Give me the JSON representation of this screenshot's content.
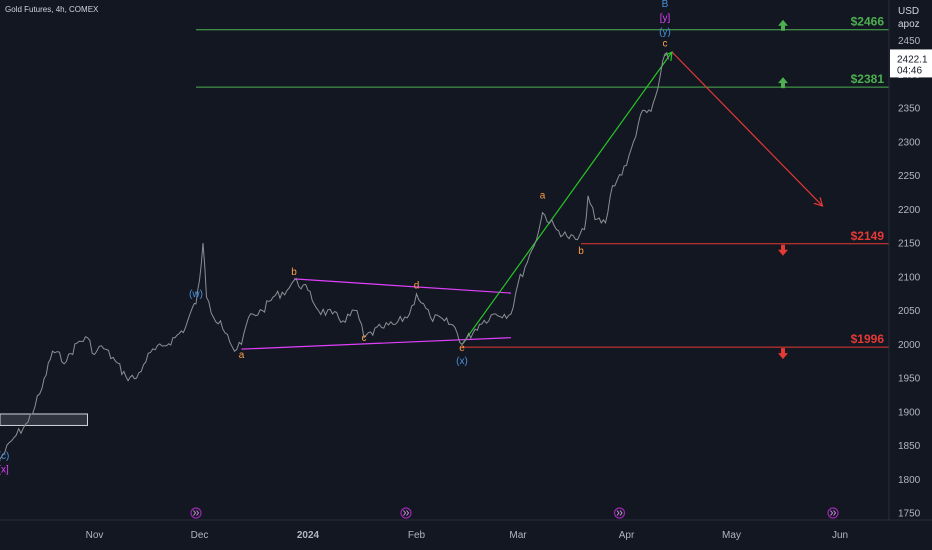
{
  "header": {
    "symbol_info": "Gold Futures, 4h, COMEX"
  },
  "price_axis": {
    "currency": "USD",
    "user": "apoz",
    "current_price": "2422.1",
    "countdown": "04:46"
  },
  "colors": {
    "background": "#131722",
    "grid": "#1f2430",
    "price": "#8d8f96",
    "level_green": "#4caf50",
    "level_red": "#e53935",
    "triangle": "#e040fb",
    "impulse_green": "#26c826",
    "projection_red": "#e53935",
    "wave_blue": "#4a90d9",
    "wave_orange": "#ff9f4a",
    "wave_magenta": "#e040fb",
    "current_price_box": "#ffffff"
  },
  "levels": [
    {
      "price": 2466,
      "label": "$2466",
      "direction": "up",
      "color": "#4caf50"
    },
    {
      "price": 2381,
      "label": "$2381",
      "direction": "up",
      "color": "#4caf50"
    },
    {
      "price": 2149,
      "label": "$2149",
      "direction": "down",
      "color": "#e53935"
    },
    {
      "price": 1996,
      "label": "$1996",
      "direction": "down",
      "color": "#e53935"
    }
  ],
  "wave_labels": [
    {
      "text": "(c)",
      "date": "2023-10-06",
      "price": 1830,
      "color": "#4a90d9"
    },
    {
      "text": "[x]",
      "date": "2023-10-06",
      "price": 1810,
      "color": "#e040fb"
    },
    {
      "text": "(w)",
      "date": "2023-11-30",
      "price": 2070,
      "color": "#4a90d9"
    },
    {
      "text": "a",
      "date": "2023-12-13",
      "price": 1980,
      "color": "#ff9f4a"
    },
    {
      "text": "b",
      "date": "2023-12-28",
      "price": 2103,
      "color": "#ff9f4a"
    },
    {
      "text": "c",
      "date": "2024-01-17",
      "price": 2005,
      "color": "#ff9f4a"
    },
    {
      "text": "d",
      "date": "2024-02-01",
      "price": 2083,
      "color": "#ff9f4a"
    },
    {
      "text": "e",
      "date": "2024-02-14",
      "price": 1990,
      "color": "#ff9f4a"
    },
    {
      "text": "(x)",
      "date": "2024-02-14",
      "price": 1971,
      "color": "#4a90d9"
    },
    {
      "text": "a",
      "date": "2024-03-08",
      "price": 2216,
      "color": "#ff9f4a"
    },
    {
      "text": "b",
      "date": "2024-03-19",
      "price": 2134,
      "color": "#ff9f4a"
    },
    {
      "text": "c",
      "date": "2024-04-12",
      "price": 2441,
      "color": "#ff9f4a"
    },
    {
      "text": "(y)",
      "date": "2024-04-12",
      "price": 2458,
      "color": "#4a90d9"
    },
    {
      "text": "[y]",
      "date": "2024-04-12",
      "price": 2479,
      "color": "#e040fb"
    },
    {
      "text": "B",
      "date": "2024-04-12",
      "price": 2500,
      "color": "#4a90d9"
    }
  ],
  "chart_data": {
    "type": "line",
    "title": "Gold Futures, 4h, COMEX",
    "x_ticks": [
      "Nov",
      "Dec",
      "2024",
      "Feb",
      "Mar",
      "Apr",
      "May",
      "Jun"
    ],
    "y_ticks": [
      2450,
      2400,
      2350,
      2300,
      2250,
      2200,
      2150,
      2100,
      2050,
      2000,
      1950,
      1900,
      1850,
      1800,
      1750
    ],
    "ylim": [
      1740,
      2510
    ],
    "xlim": [
      "2023-10-05",
      "2024-06-15"
    ],
    "grid": false,
    "series": [
      {
        "values": [
          [
            "2023-10-05",
            1830
          ],
          [
            "2023-10-09",
            1862
          ],
          [
            "2023-10-13",
            1885
          ],
          [
            "2023-10-17",
            1935
          ],
          [
            "2023-10-20",
            1990
          ],
          [
            "2023-10-24",
            1975
          ],
          [
            "2023-10-27",
            2002
          ],
          [
            "2023-10-30",
            2010
          ],
          [
            "2023-11-01",
            1985
          ],
          [
            "2023-11-03",
            1998
          ],
          [
            "2023-11-07",
            1975
          ],
          [
            "2023-11-10",
            1952
          ],
          [
            "2023-11-13",
            1950
          ],
          [
            "2023-11-15",
            1970
          ],
          [
            "2023-11-17",
            1988
          ],
          [
            "2023-11-21",
            1998
          ],
          [
            "2023-11-24",
            2010
          ],
          [
            "2023-11-27",
            2025
          ],
          [
            "2023-11-29",
            2055
          ],
          [
            "2023-11-30",
            2060
          ],
          [
            "2023-12-01",
            2095
          ],
          [
            "2023-12-02",
            2150
          ],
          [
            "2023-12-03",
            2070
          ],
          [
            "2023-12-05",
            2040
          ],
          [
            "2023-12-07",
            2035
          ],
          [
            "2023-12-09",
            2015
          ],
          [
            "2023-12-11",
            1990
          ],
          [
            "2023-12-13",
            2000
          ],
          [
            "2023-12-15",
            2040
          ],
          [
            "2023-12-19",
            2050
          ],
          [
            "2023-12-22",
            2070
          ],
          [
            "2023-12-26",
            2080
          ],
          [
            "2023-12-28",
            2095
          ],
          [
            "2024-01-01",
            2080
          ],
          [
            "2024-01-04",
            2050
          ],
          [
            "2024-01-08",
            2045
          ],
          [
            "2024-01-11",
            2035
          ],
          [
            "2024-01-15",
            2050
          ],
          [
            "2024-01-17",
            2010
          ],
          [
            "2024-01-22",
            2025
          ],
          [
            "2024-01-26",
            2030
          ],
          [
            "2024-01-30",
            2045
          ],
          [
            "2024-02-01",
            2075
          ],
          [
            "2024-02-05",
            2040
          ],
          [
            "2024-02-09",
            2035
          ],
          [
            "2024-02-12",
            2025
          ],
          [
            "2024-02-14",
            2000
          ],
          [
            "2024-02-19",
            2030
          ],
          [
            "2024-02-23",
            2045
          ],
          [
            "2024-02-28",
            2045
          ],
          [
            "2024-03-01",
            2090
          ],
          [
            "2024-03-05",
            2140
          ],
          [
            "2024-03-07",
            2170
          ],
          [
            "2024-03-08",
            2195
          ],
          [
            "2024-03-12",
            2170
          ],
          [
            "2024-03-15",
            2160
          ],
          [
            "2024-03-18",
            2155
          ],
          [
            "2024-03-20",
            2170
          ],
          [
            "2024-03-21",
            2220
          ],
          [
            "2024-03-23",
            2185
          ],
          [
            "2024-03-26",
            2180
          ],
          [
            "2024-03-28",
            2235
          ],
          [
            "2024-04-01",
            2265
          ],
          [
            "2024-04-03",
            2300
          ],
          [
            "2024-04-05",
            2340
          ],
          [
            "2024-04-08",
            2345
          ],
          [
            "2024-04-10",
            2380
          ],
          [
            "2024-04-12",
            2430
          ],
          [
            "2024-04-13",
            2422
          ]
        ]
      }
    ],
    "annotations": [
      {
        "type": "triangle-upper",
        "points": [
          [
            "2023-12-28",
            2097
          ],
          [
            "2024-02-28",
            2076
          ]
        ]
      },
      {
        "type": "triangle-lower",
        "points": [
          [
            "2023-12-13",
            1993
          ],
          [
            "2024-02-28",
            2010
          ]
        ]
      },
      {
        "type": "impulse-line",
        "points": [
          [
            "2024-02-14",
            2000
          ],
          [
            "2024-04-14",
            2433
          ]
        ]
      },
      {
        "type": "projection",
        "points": [
          [
            "2024-04-14",
            2433
          ],
          [
            "2024-05-27",
            2205
          ]
        ]
      },
      {
        "type": "consolidation-box",
        "points": [
          [
            "2023-10-05",
            1880
          ],
          [
            "2023-10-30",
            1897
          ]
        ]
      }
    ]
  }
}
